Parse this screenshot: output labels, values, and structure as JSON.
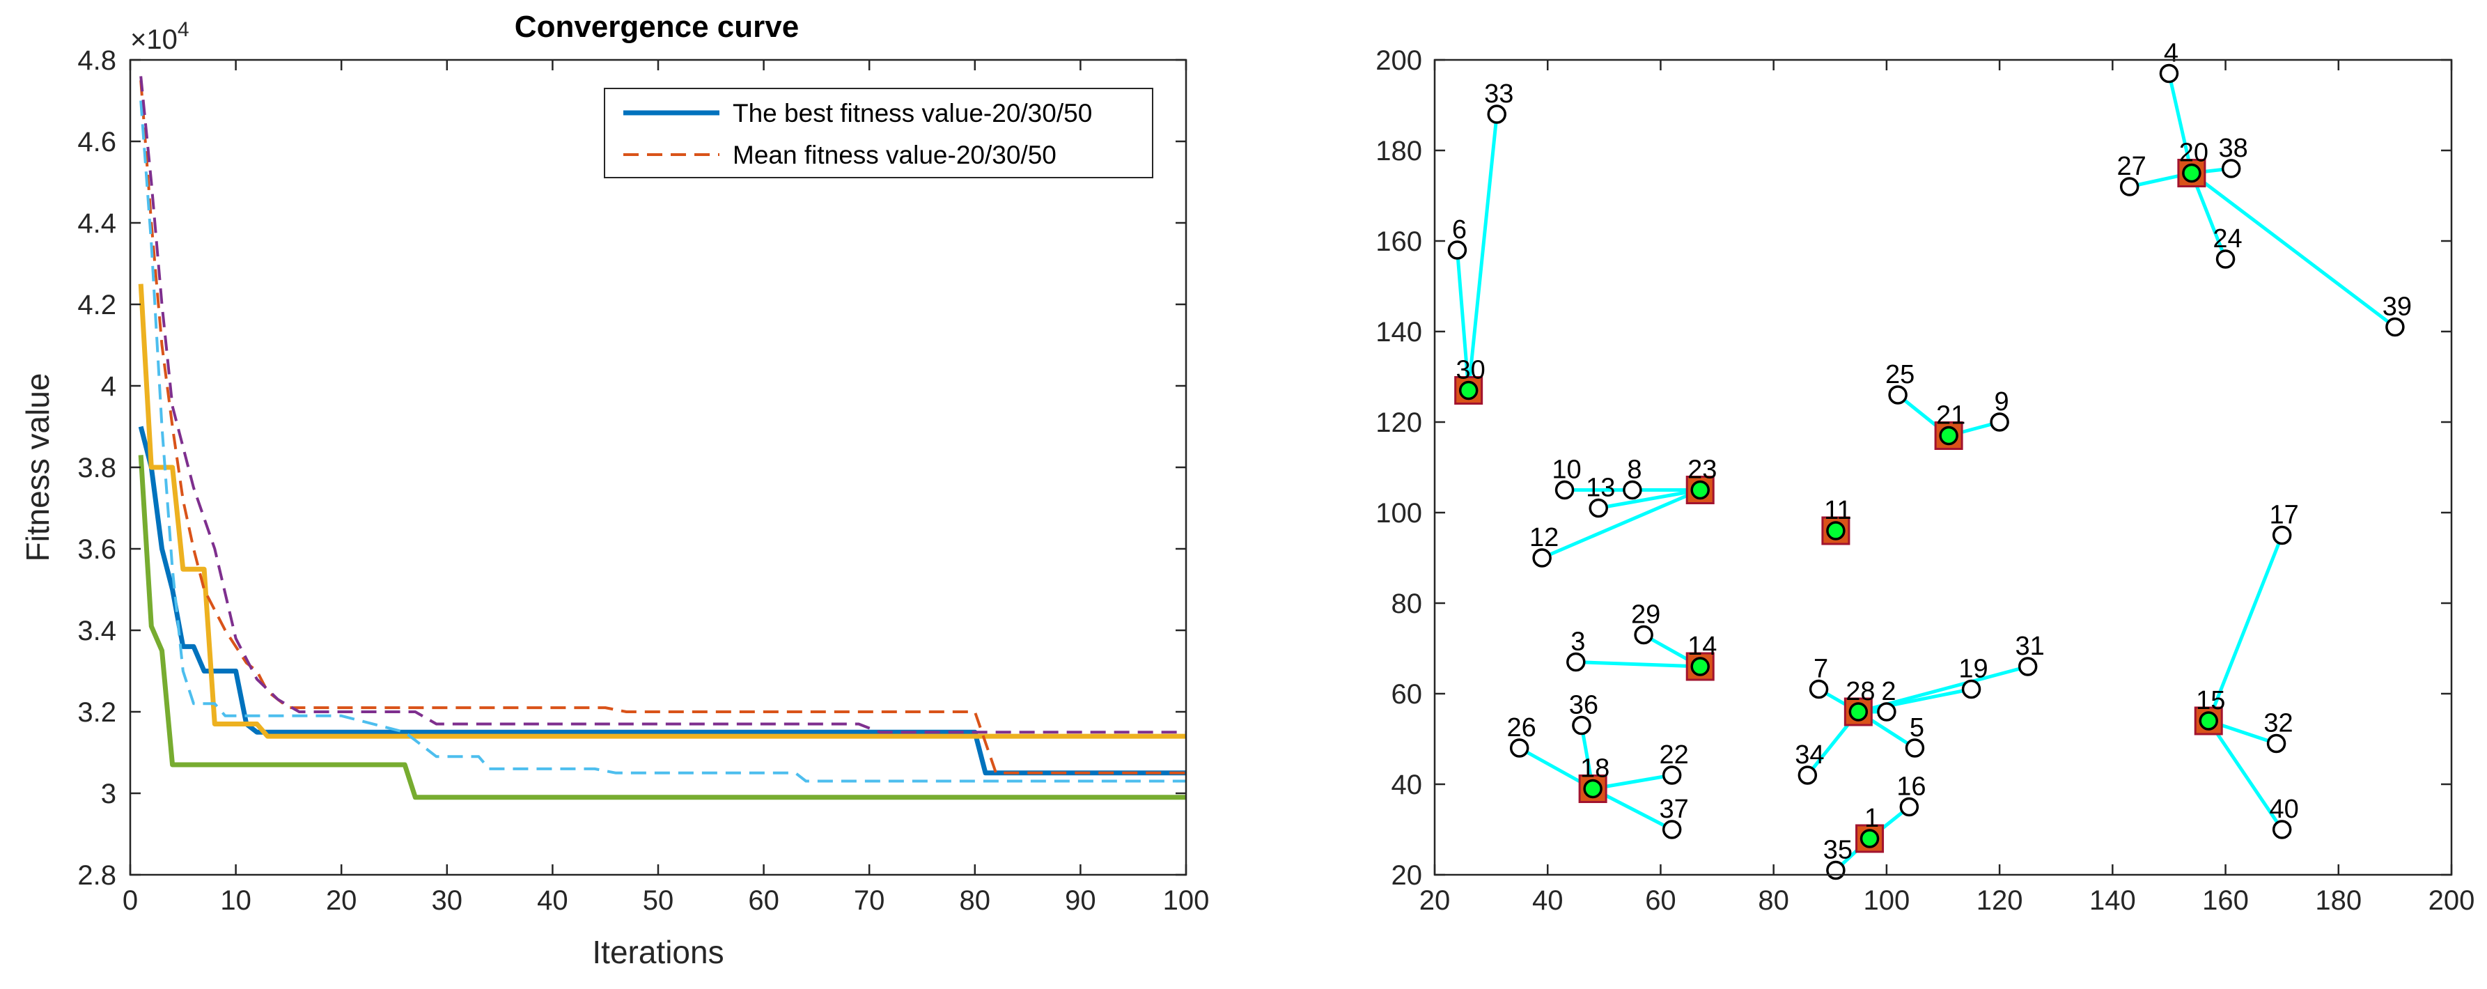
{
  "chart_data": [
    {
      "type": "line",
      "title": "Convergence curve",
      "xlabel": "Iterations",
      "ylabel": "Fitness value",
      "yexp": "×10",
      "yexp_power": "4",
      "xlim": [
        0,
        100
      ],
      "ylim": [
        2.8,
        4.8
      ],
      "xticks": [
        "0",
        "10",
        "20",
        "30",
        "40",
        "50",
        "60",
        "70",
        "80",
        "90",
        "100"
      ],
      "yticks": [
        "2.8",
        "3",
        "3.2",
        "3.4",
        "3.6",
        "3.8",
        "4",
        "4.2",
        "4.4",
        "4.6",
        "4.8"
      ],
      "legend": [
        "The best fitness value-20/30/50",
        "Mean fitness value-20/30/50"
      ],
      "series": [
        {
          "name": "best-20",
          "color": "#0072BD",
          "dash": "solid",
          "points": [
            [
              1,
              3.9
            ],
            [
              2,
              3.8
            ],
            [
              3,
              3.6
            ],
            [
              4,
              3.5
            ],
            [
              5,
              3.36
            ],
            [
              6,
              3.36
            ],
            [
              7,
              3.3
            ],
            [
              10,
              3.3
            ],
            [
              11,
              3.17
            ],
            [
              12,
              3.15
            ],
            [
              80,
              3.15
            ],
            [
              81,
              3.05
            ],
            [
              100,
              3.05
            ]
          ]
        },
        {
          "name": "best-30",
          "color": "#EDB120",
          "dash": "solid",
          "points": [
            [
              1,
              4.25
            ],
            [
              2,
              3.8
            ],
            [
              4,
              3.8
            ],
            [
              5,
              3.55
            ],
            [
              7,
              3.55
            ],
            [
              8,
              3.17
            ],
            [
              12,
              3.17
            ],
            [
              13,
              3.14
            ],
            [
              100,
              3.14
            ]
          ]
        },
        {
          "name": "best-50",
          "color": "#77AC30",
          "dash": "solid",
          "points": [
            [
              1,
              3.83
            ],
            [
              2,
              3.41
            ],
            [
              3,
              3.35
            ],
            [
              4,
              3.07
            ],
            [
              26,
              3.07
            ],
            [
              27,
              2.99
            ],
            [
              100,
              2.99
            ]
          ]
        },
        {
          "name": "mean-20",
          "color": "#D95319",
          "dash": "dashed",
          "points": [
            [
              1,
              4.75
            ],
            [
              2,
              4.4
            ],
            [
              3,
              4.1
            ],
            [
              4,
              3.9
            ],
            [
              5,
              3.72
            ],
            [
              6,
              3.6
            ],
            [
              7,
              3.5
            ],
            [
              9,
              3.4
            ],
            [
              11,
              3.32
            ],
            [
              12,
              3.3
            ],
            [
              13,
              3.25
            ],
            [
              15,
              3.21
            ],
            [
              45,
              3.21
            ],
            [
              47,
              3.2
            ],
            [
              80,
              3.2
            ],
            [
              82,
              3.05
            ],
            [
              100,
              3.05
            ]
          ]
        },
        {
          "name": "mean-30",
          "color": "#4DBEEE",
          "dash": "dashed",
          "points": [
            [
              1,
              4.7
            ],
            [
              2,
              4.35
            ],
            [
              3,
              3.9
            ],
            [
              4,
              3.55
            ],
            [
              5,
              3.3
            ],
            [
              6,
              3.22
            ],
            [
              8,
              3.22
            ],
            [
              9,
              3.19
            ],
            [
              20,
              3.19
            ],
            [
              26,
              3.15
            ],
            [
              29,
              3.09
            ],
            [
              33,
              3.09
            ],
            [
              34,
              3.06
            ],
            [
              44,
              3.06
            ],
            [
              46,
              3.05
            ],
            [
              63,
              3.05
            ],
            [
              64,
              3.03
            ],
            [
              100,
              3.03
            ]
          ]
        },
        {
          "name": "mean-50",
          "color": "#7E2F8E",
          "dash": "dashed",
          "points": [
            [
              1,
              4.76
            ],
            [
              2,
              4.5
            ],
            [
              3,
              4.2
            ],
            [
              4,
              3.95
            ],
            [
              6,
              3.75
            ],
            [
              8,
              3.6
            ],
            [
              10,
              3.38
            ],
            [
              12,
              3.28
            ],
            [
              14,
              3.23
            ],
            [
              16,
              3.2
            ],
            [
              27,
              3.2
            ],
            [
              29,
              3.17
            ],
            [
              69,
              3.17
            ],
            [
              71,
              3.15
            ],
            [
              100,
              3.15
            ]
          ]
        }
      ]
    },
    {
      "type": "scatter",
      "title": "",
      "xlim": [
        20,
        200
      ],
      "ylim": [
        20,
        200
      ],
      "xticks": [
        "20",
        "40",
        "60",
        "80",
        "100",
        "120",
        "140",
        "160",
        "180",
        "200"
      ],
      "yticks": [
        "20",
        "40",
        "60",
        "80",
        "100",
        "120",
        "140",
        "160",
        "180",
        "200"
      ],
      "connection_color": "#00FFFF",
      "points": [
        {
          "id": "1",
          "x": 97,
          "y": 28
        },
        {
          "id": "2",
          "x": 100,
          "y": 56
        },
        {
          "id": "3",
          "x": 45,
          "y": 67
        },
        {
          "id": "4",
          "x": 150,
          "y": 197
        },
        {
          "id": "5",
          "x": 105,
          "y": 48
        },
        {
          "id": "6",
          "x": 24,
          "y": 158
        },
        {
          "id": "7",
          "x": 88,
          "y": 61
        },
        {
          "id": "8",
          "x": 55,
          "y": 105
        },
        {
          "id": "9",
          "x": 120,
          "y": 120
        },
        {
          "id": "10",
          "x": 43,
          "y": 105
        },
        {
          "id": "11",
          "x": 91,
          "y": 96
        },
        {
          "id": "12",
          "x": 39,
          "y": 90
        },
        {
          "id": "13",
          "x": 49,
          "y": 101
        },
        {
          "id": "14",
          "x": 67,
          "y": 66
        },
        {
          "id": "15",
          "x": 157,
          "y": 54
        },
        {
          "id": "16",
          "x": 104,
          "y": 35
        },
        {
          "id": "17",
          "x": 170,
          "y": 95
        },
        {
          "id": "18",
          "x": 48,
          "y": 39
        },
        {
          "id": "19",
          "x": 115,
          "y": 61
        },
        {
          "id": "20",
          "x": 154,
          "y": 175
        },
        {
          "id": "21",
          "x": 111,
          "y": 117
        },
        {
          "id": "22",
          "x": 62,
          "y": 42
        },
        {
          "id": "23",
          "x": 67,
          "y": 105
        },
        {
          "id": "24",
          "x": 160,
          "y": 156
        },
        {
          "id": "25",
          "x": 102,
          "y": 126
        },
        {
          "id": "26",
          "x": 35,
          "y": 48
        },
        {
          "id": "27",
          "x": 143,
          "y": 172
        },
        {
          "id": "28",
          "x": 95,
          "y": 56
        },
        {
          "id": "29",
          "x": 57,
          "y": 73
        },
        {
          "id": "30",
          "x": 26,
          "y": 127
        },
        {
          "id": "31",
          "x": 125,
          "y": 66
        },
        {
          "id": "32",
          "x": 169,
          "y": 49
        },
        {
          "id": "33",
          "x": 31,
          "y": 188
        },
        {
          "id": "34",
          "x": 86,
          "y": 42
        },
        {
          "id": "35",
          "x": 91,
          "y": 21
        },
        {
          "id": "36",
          "x": 46,
          "y": 53
        },
        {
          "id": "37",
          "x": 62,
          "y": 30
        },
        {
          "id": "38",
          "x": 161,
          "y": 176
        },
        {
          "id": "39",
          "x": 190,
          "y": 141
        },
        {
          "id": "40",
          "x": 170,
          "y": 30
        }
      ],
      "centers": [
        "30",
        "20",
        "21",
        "23",
        "11",
        "14",
        "28",
        "18",
        "1",
        "15"
      ],
      "links": [
        [
          "30",
          "6"
        ],
        [
          "30",
          "33"
        ],
        [
          "20",
          "4"
        ],
        [
          "20",
          "27"
        ],
        [
          "20",
          "38"
        ],
        [
          "20",
          "24"
        ],
        [
          "20",
          "39"
        ],
        [
          "21",
          "25"
        ],
        [
          "21",
          "9"
        ],
        [
          "23",
          "10"
        ],
        [
          "23",
          "13"
        ],
        [
          "23",
          "8"
        ],
        [
          "23",
          "12"
        ],
        [
          "14",
          "3"
        ],
        [
          "14",
          "29"
        ],
        [
          "28",
          "7"
        ],
        [
          "28",
          "2"
        ],
        [
          "28",
          "19"
        ],
        [
          "28",
          "31"
        ],
        [
          "28",
          "5"
        ],
        [
          "28",
          "34"
        ],
        [
          "18",
          "26"
        ],
        [
          "18",
          "36"
        ],
        [
          "18",
          "22"
        ],
        [
          "18",
          "37"
        ],
        [
          "1",
          "16"
        ],
        [
          "1",
          "35"
        ],
        [
          "15",
          "17"
        ],
        [
          "15",
          "32"
        ],
        [
          "15",
          "40"
        ]
      ]
    }
  ]
}
